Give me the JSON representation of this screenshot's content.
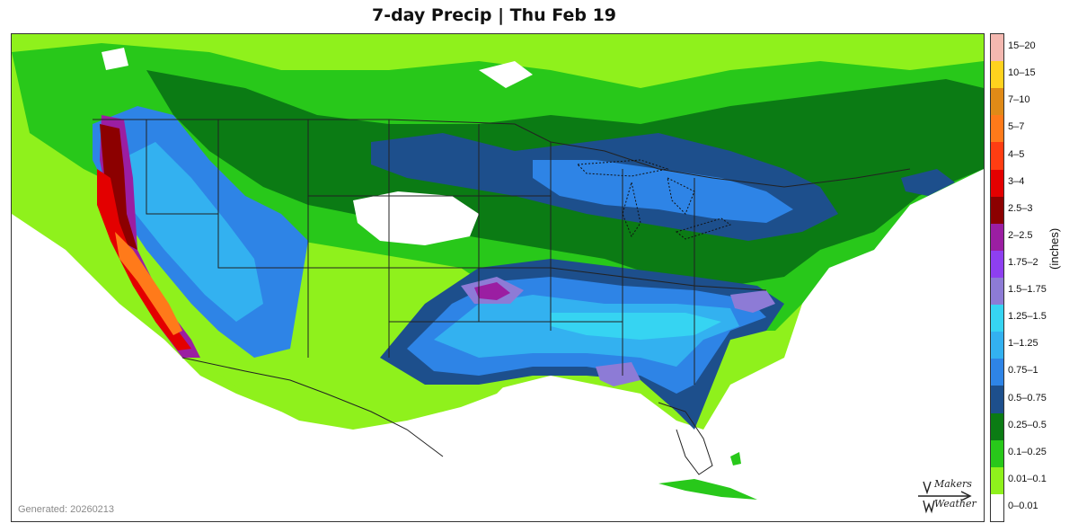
{
  "title": "7-day Precip | Thu Feb 19",
  "generated": "Generated: 20260213",
  "units": "(inches)",
  "logo": {
    "line1": "Makers",
    "line2": "Weather",
    "word": "MakersWeather"
  },
  "legend": [
    {
      "label": "15–20",
      "color": "#f4b8b0"
    },
    {
      "label": "10–15",
      "color": "#ffd21e"
    },
    {
      "label": "7–10",
      "color": "#e08a17"
    },
    {
      "label": "5–7",
      "color": "#ff7a1a"
    },
    {
      "label": "4–5",
      "color": "#ff3d12"
    },
    {
      "label": "3–4",
      "color": "#e30000"
    },
    {
      "label": "2.5–3",
      "color": "#8c0000"
    },
    {
      "label": "2–2.5",
      "color": "#9b1ea2"
    },
    {
      "label": "1.75–2",
      "color": "#8e3ff0"
    },
    {
      "label": "1.5–1.75",
      "color": "#8d7bd6"
    },
    {
      "label": "1.25–1.5",
      "color": "#36d4f2"
    },
    {
      "label": "1–1.25",
      "color": "#33b1f0"
    },
    {
      "label": "0.75–1",
      "color": "#2e84e6"
    },
    {
      "label": "0.5–0.75",
      "color": "#1d4f8c"
    },
    {
      "label": "0.25–0.5",
      "color": "#0b7b14"
    },
    {
      "label": "0.1–0.25",
      "color": "#28c81a"
    },
    {
      "label": "0.01–0.1",
      "color": "#8ff11c"
    },
    {
      "label": "0–0.01",
      "color": "#ffffff"
    }
  ]
}
